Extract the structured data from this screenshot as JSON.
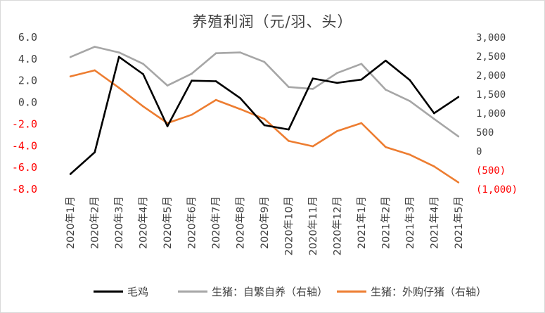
{
  "chart_data": {
    "type": "line",
    "title": "养殖利润（元/羽、头）",
    "categories": [
      "2020年1月",
      "2020年2月",
      "2020年3月",
      "2020年4月",
      "2020年5月",
      "2020年6月",
      "2020年7月",
      "2020年8月",
      "2020年9月",
      "2020年10月",
      "2020年11月",
      "2020年12月",
      "2021年1月",
      "2021年2月",
      "2021年3月",
      "2021年4月",
      "2021年5月"
    ],
    "left_axis": {
      "ylim": [
        -8,
        6
      ],
      "ticks": [
        6,
        4,
        2,
        0,
        -2,
        -4,
        -6,
        -8
      ],
      "tick_labels": [
        "6.0",
        "4.0",
        "2.0",
        "0.0",
        "-2.0",
        "-4.0",
        "-6.0",
        "-8.0"
      ],
      "positive_color": "#404040",
      "negative_color": "#ff0000"
    },
    "right_axis": {
      "ylim": [
        -1000,
        3000
      ],
      "ticks": [
        3000,
        2500,
        2000,
        1500,
        1000,
        500,
        0,
        -500,
        -1000
      ],
      "tick_labels": [
        "3,000",
        "2,500",
        "2,000",
        "1,500",
        "1,000",
        "500",
        "0",
        "(500)",
        "(1,000)"
      ],
      "positive_color": "#404040",
      "negative_color": "#ff0000"
    },
    "grid": false,
    "legend_position": "bottom",
    "series": [
      {
        "name": "毛鸡",
        "axis": "left",
        "color": "#000000",
        "values": [
          -6.6,
          -4.6,
          4.2,
          2.6,
          -2.2,
          2.0,
          1.95,
          0.4,
          -2.1,
          -2.5,
          2.2,
          1.8,
          2.1,
          3.85,
          2.05,
          -1.0,
          0.5
        ]
      },
      {
        "name": "生猪：自繁自养（右轴）",
        "axis": "right",
        "color": "#a6a6a6",
        "values": [
          2480,
          2750,
          2600,
          2300,
          1730,
          2040,
          2580,
          2600,
          2350,
          1690,
          1640,
          2060,
          2300,
          1620,
          1320,
          850,
          390
        ]
      },
      {
        "name": "生猪：外购仔猪（右轴）",
        "axis": "right",
        "color": "#ed7d31",
        "values": [
          1970,
          2130,
          1670,
          1180,
          740,
          960,
          1350,
          1110,
          850,
          270,
          130,
          530,
          740,
          110,
          -90,
          -400,
          -820
        ]
      }
    ]
  }
}
